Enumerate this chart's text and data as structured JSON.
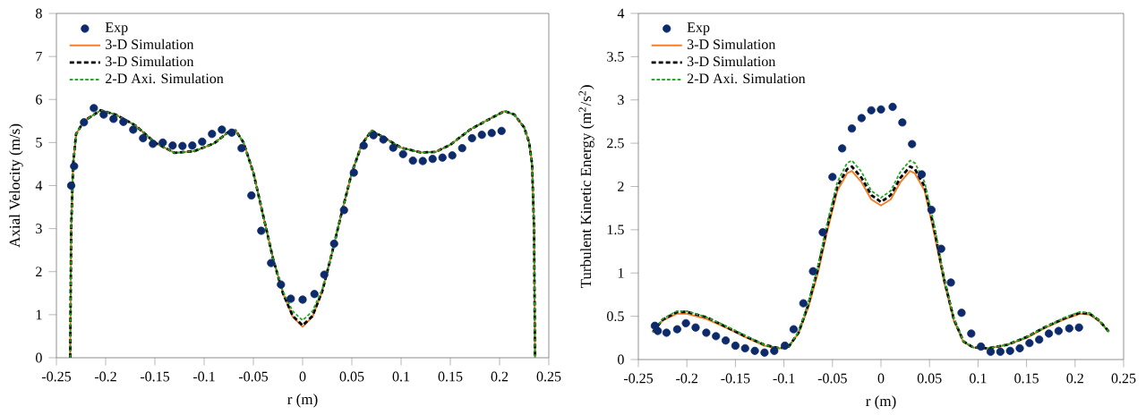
{
  "chart_data": [
    {
      "type": "line",
      "xlabel": "r (m)",
      "ylabel": "Axial Velocity (m/s)",
      "xlim": [
        -0.25,
        0.25
      ],
      "xticks": [
        -0.25,
        -0.2,
        -0.15,
        -0.1,
        -0.05,
        0,
        0.05,
        0.1,
        0.15,
        0.2,
        0.25
      ],
      "ylim": [
        0,
        8
      ],
      "yticks": [
        0,
        1,
        2,
        3,
        4,
        5,
        6,
        7,
        8
      ],
      "legend": "top left",
      "series": [
        {
          "name": "Exp",
          "type": "scatter",
          "marker": "circle",
          "color": "#0d2a6b",
          "x": [
            -0.235,
            -0.232,
            -0.222,
            -0.212,
            -0.202,
            -0.192,
            -0.182,
            -0.172,
            -0.162,
            -0.152,
            -0.142,
            -0.132,
            -0.122,
            -0.112,
            -0.102,
            -0.092,
            -0.082,
            -0.072,
            -0.062,
            -0.052,
            -0.042,
            -0.032,
            -0.022,
            -0.012,
            0,
            0.012,
            0.022,
            0.032,
            0.042,
            0.052,
            0.062,
            0.072,
            0.082,
            0.092,
            0.102,
            0.112,
            0.122,
            0.132,
            0.142,
            0.152,
            0.162,
            0.172,
            0.182,
            0.192,
            0.202
          ],
          "values": [
            4.0,
            4.45,
            5.47,
            5.8,
            5.65,
            5.55,
            5.48,
            5.3,
            5.1,
            4.97,
            5.0,
            4.93,
            4.92,
            4.93,
            5.02,
            5.2,
            5.3,
            5.23,
            4.87,
            3.77,
            2.95,
            2.2,
            1.7,
            1.37,
            1.35,
            1.48,
            1.93,
            2.65,
            3.43,
            4.3,
            4.93,
            5.17,
            5.07,
            4.88,
            4.73,
            4.58,
            4.57,
            4.62,
            4.65,
            4.7,
            4.87,
            5.1,
            5.18,
            5.22,
            5.27
          ]
        },
        {
          "name": "3-D Simulation",
          "line_style": "solid",
          "color": "#f07f2a",
          "x": [
            -0.236,
            -0.235,
            -0.233,
            -0.23,
            -0.222,
            -0.205,
            -0.19,
            -0.17,
            -0.15,
            -0.13,
            -0.11,
            -0.09,
            -0.075,
            -0.068,
            -0.06,
            -0.05,
            -0.04,
            -0.03,
            -0.02,
            -0.01,
            0,
            0.01,
            0.02,
            0.03,
            0.04,
            0.05,
            0.06,
            0.07,
            0.08,
            0.1,
            0.12,
            0.135,
            0.15,
            0.17,
            0.19,
            0.205,
            0.215,
            0.225,
            0.23,
            0.233,
            0.235,
            0.236
          ],
          "values": [
            0,
            3,
            4.5,
            5.2,
            5.5,
            5.75,
            5.65,
            5.4,
            5.0,
            4.76,
            4.8,
            4.98,
            5.25,
            5.28,
            5.0,
            4.3,
            3.3,
            2.3,
            1.5,
            0.95,
            0.72,
            0.95,
            1.55,
            2.45,
            3.4,
            4.3,
            4.95,
            5.28,
            5.15,
            4.88,
            4.77,
            4.78,
            4.95,
            5.3,
            5.55,
            5.73,
            5.65,
            5.35,
            5.0,
            4.5,
            3,
            0
          ]
        },
        {
          "name": "3-D Simulation",
          "line_style": "dashed",
          "color": "#000000",
          "x": [
            -0.236,
            -0.235,
            -0.233,
            -0.23,
            -0.222,
            -0.205,
            -0.19,
            -0.17,
            -0.15,
            -0.13,
            -0.11,
            -0.09,
            -0.075,
            -0.068,
            -0.06,
            -0.05,
            -0.04,
            -0.03,
            -0.02,
            -0.01,
            0,
            0.01,
            0.02,
            0.03,
            0.04,
            0.05,
            0.06,
            0.07,
            0.08,
            0.1,
            0.12,
            0.135,
            0.15,
            0.17,
            0.19,
            0.205,
            0.215,
            0.225,
            0.23,
            0.233,
            0.235,
            0.236
          ],
          "values": [
            0,
            3,
            4.5,
            5.2,
            5.5,
            5.75,
            5.65,
            5.4,
            5.0,
            4.76,
            4.8,
            4.98,
            5.25,
            5.28,
            5.0,
            4.3,
            3.3,
            2.3,
            1.5,
            0.97,
            0.75,
            0.97,
            1.55,
            2.45,
            3.4,
            4.3,
            4.95,
            5.28,
            5.15,
            4.88,
            4.77,
            4.78,
            4.95,
            5.3,
            5.55,
            5.73,
            5.65,
            5.35,
            5.0,
            4.5,
            3,
            0
          ]
        },
        {
          "name": "2-D Axi. Simulation",
          "line_style": "dotted",
          "color": "#22aa22",
          "x": [
            -0.236,
            -0.235,
            -0.233,
            -0.23,
            -0.222,
            -0.205,
            -0.19,
            -0.17,
            -0.15,
            -0.13,
            -0.11,
            -0.09,
            -0.075,
            -0.068,
            -0.06,
            -0.05,
            -0.04,
            -0.03,
            -0.02,
            -0.01,
            0,
            0.01,
            0.02,
            0.03,
            0.04,
            0.05,
            0.06,
            0.07,
            0.08,
            0.1,
            0.12,
            0.135,
            0.15,
            0.17,
            0.19,
            0.205,
            0.215,
            0.225,
            0.23,
            0.233,
            0.235,
            0.236
          ],
          "values": [
            0,
            3,
            4.5,
            5.2,
            5.5,
            5.75,
            5.65,
            5.4,
            5.0,
            4.76,
            4.8,
            4.98,
            5.25,
            5.28,
            5.0,
            4.3,
            3.3,
            2.3,
            1.55,
            1.08,
            0.87,
            1.08,
            1.6,
            2.45,
            3.4,
            4.3,
            4.95,
            5.28,
            5.15,
            4.88,
            4.77,
            4.78,
            4.95,
            5.3,
            5.55,
            5.73,
            5.65,
            5.35,
            5.0,
            4.5,
            3,
            0
          ]
        }
      ]
    },
    {
      "type": "line",
      "xlabel": "r (m)",
      "ylabel": "Turbulent Kinetic Energy (m$^{2}$/s$^{2}$)",
      "xlim": [
        -0.25,
        0.25
      ],
      "xticks": [
        -0.25,
        -0.2,
        -0.15,
        -0.1,
        -0.05,
        0,
        0.05,
        0.1,
        0.15,
        0.2,
        0.25
      ],
      "ylim": [
        0,
        4
      ],
      "yticks": [
        0,
        0.5,
        1,
        1.5,
        2,
        2.5,
        3,
        3.5,
        4
      ],
      "legend": "top left",
      "series": [
        {
          "name": "Exp",
          "type": "scatter",
          "marker": "circle",
          "color": "#0d2a6b",
          "x": [
            -0.233,
            -0.23,
            -0.221,
            -0.21,
            -0.201,
            -0.191,
            -0.18,
            -0.17,
            -0.16,
            -0.15,
            -0.14,
            -0.13,
            -0.12,
            -0.11,
            -0.099,
            -0.09,
            -0.08,
            -0.07,
            -0.06,
            -0.05,
            -0.04,
            -0.03,
            -0.02,
            -0.01,
            0,
            0.012,
            0.022,
            0.032,
            0.042,
            0.052,
            0.062,
            0.072,
            0.083,
            0.093,
            0.103,
            0.113,
            0.123,
            0.133,
            0.143,
            0.153,
            0.163,
            0.173,
            0.183,
            0.194,
            0.204
          ],
          "values": [
            0.39,
            0.33,
            0.31,
            0.35,
            0.42,
            0.37,
            0.31,
            0.27,
            0.22,
            0.16,
            0.13,
            0.1,
            0.08,
            0.1,
            0.16,
            0.35,
            0.65,
            1.02,
            1.47,
            2.11,
            2.44,
            2.67,
            2.79,
            2.88,
            2.89,
            2.92,
            2.74,
            2.49,
            2.14,
            1.73,
            1.28,
            0.89,
            0.54,
            0.3,
            0.15,
            0.09,
            0.09,
            0.1,
            0.13,
            0.19,
            0.23,
            0.3,
            0.33,
            0.36,
            0.37
          ]
        },
        {
          "name": "3-D Simulation",
          "line_style": "solid",
          "color": "#f07f2a",
          "x": [
            -0.235,
            -0.225,
            -0.21,
            -0.2,
            -0.18,
            -0.16,
            -0.14,
            -0.12,
            -0.105,
            -0.095,
            -0.085,
            -0.075,
            -0.065,
            -0.055,
            -0.045,
            -0.035,
            -0.03,
            -0.02,
            -0.01,
            0,
            0.01,
            0.02,
            0.03,
            0.035,
            0.045,
            0.055,
            0.065,
            0.075,
            0.085,
            0.095,
            0.11,
            0.13,
            0.15,
            0.17,
            0.19,
            0.205,
            0.215,
            0.225,
            0.235
          ],
          "values": [
            0.32,
            0.45,
            0.53,
            0.53,
            0.47,
            0.37,
            0.26,
            0.16,
            0.13,
            0.15,
            0.3,
            0.6,
            1.0,
            1.5,
            1.95,
            2.15,
            2.18,
            2.05,
            1.85,
            1.78,
            1.85,
            2.05,
            2.18,
            2.15,
            1.95,
            1.45,
            0.9,
            0.45,
            0.2,
            0.14,
            0.13,
            0.17,
            0.25,
            0.37,
            0.47,
            0.53,
            0.52,
            0.44,
            0.32
          ]
        },
        {
          "name": "3-D Simulation",
          "line_style": "dashed",
          "color": "#000000",
          "x": [
            -0.235,
            -0.225,
            -0.21,
            -0.2,
            -0.18,
            -0.16,
            -0.14,
            -0.12,
            -0.105,
            -0.095,
            -0.085,
            -0.075,
            -0.065,
            -0.055,
            -0.045,
            -0.035,
            -0.03,
            -0.02,
            -0.01,
            0,
            0.01,
            0.02,
            0.03,
            0.035,
            0.045,
            0.055,
            0.065,
            0.075,
            0.085,
            0.095,
            0.11,
            0.13,
            0.15,
            0.17,
            0.19,
            0.205,
            0.215,
            0.225,
            0.235
          ],
          "values": [
            0.32,
            0.46,
            0.55,
            0.55,
            0.49,
            0.38,
            0.27,
            0.17,
            0.13,
            0.15,
            0.31,
            0.63,
            1.05,
            1.55,
            2.0,
            2.2,
            2.23,
            2.1,
            1.9,
            1.82,
            1.9,
            2.1,
            2.23,
            2.2,
            2.0,
            1.5,
            0.93,
            0.47,
            0.21,
            0.14,
            0.13,
            0.17,
            0.26,
            0.38,
            0.48,
            0.54,
            0.53,
            0.45,
            0.32
          ]
        },
        {
          "name": "2-D Axi. Simulation",
          "line_style": "dotted",
          "color": "#22aa22",
          "x": [
            -0.235,
            -0.225,
            -0.21,
            -0.2,
            -0.18,
            -0.16,
            -0.14,
            -0.12,
            -0.105,
            -0.095,
            -0.085,
            -0.075,
            -0.065,
            -0.055,
            -0.045,
            -0.035,
            -0.03,
            -0.02,
            -0.01,
            0,
            0.01,
            0.02,
            0.03,
            0.035,
            0.045,
            0.055,
            0.065,
            0.075,
            0.085,
            0.095,
            0.11,
            0.13,
            0.15,
            0.17,
            0.19,
            0.205,
            0.215,
            0.225,
            0.235
          ],
          "values": [
            0.31,
            0.47,
            0.56,
            0.56,
            0.49,
            0.39,
            0.28,
            0.17,
            0.13,
            0.15,
            0.32,
            0.65,
            1.08,
            1.6,
            2.05,
            2.27,
            2.3,
            2.17,
            1.95,
            1.87,
            1.95,
            2.17,
            2.3,
            2.27,
            2.05,
            1.55,
            0.95,
            0.48,
            0.21,
            0.14,
            0.13,
            0.17,
            0.26,
            0.38,
            0.49,
            0.55,
            0.54,
            0.45,
            0.32
          ]
        }
      ]
    }
  ]
}
